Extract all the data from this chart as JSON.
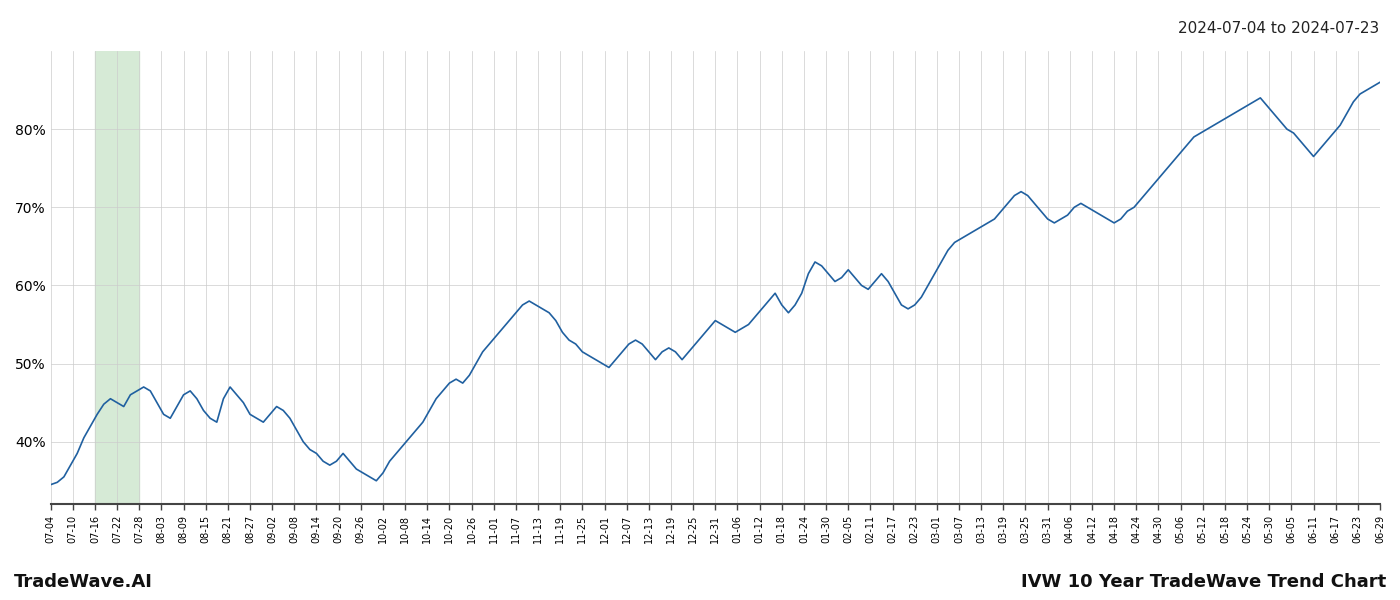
{
  "title_top_right": "2024-07-04 to 2024-07-23",
  "bottom_left": "TradeWave.AI",
  "bottom_right": "IVW 10 Year TradeWave Trend Chart",
  "line_color": "#2060a0",
  "shade_color": "#d6ead6",
  "ylim": [
    32,
    90
  ],
  "yticks": [
    40,
    50,
    60,
    70,
    80
  ],
  "ytick_labels": [
    "40%",
    "50%",
    "60%",
    "70%",
    "80%"
  ],
  "shade_start_label": "07-16",
  "shade_end_label": "07-28",
  "background_color": "#ffffff",
  "grid_color": "#cccccc",
  "xtick_labels": [
    "07-04",
    "07-10",
    "07-16",
    "07-22",
    "07-28",
    "08-03",
    "08-09",
    "08-15",
    "08-21",
    "08-27",
    "09-02",
    "09-08",
    "09-14",
    "09-20",
    "09-26",
    "10-02",
    "10-08",
    "10-14",
    "10-20",
    "10-26",
    "11-01",
    "11-07",
    "11-13",
    "11-19",
    "11-25",
    "12-01",
    "12-07",
    "12-13",
    "12-19",
    "12-25",
    "12-31",
    "01-06",
    "01-12",
    "01-18",
    "01-24",
    "01-30",
    "02-05",
    "02-11",
    "02-17",
    "02-23",
    "03-01",
    "03-07",
    "03-13",
    "03-19",
    "03-25",
    "03-31",
    "04-06",
    "04-12",
    "04-18",
    "04-24",
    "04-30",
    "05-06",
    "05-12",
    "05-18",
    "05-24",
    "05-30",
    "06-05",
    "06-11",
    "06-17",
    "06-23",
    "06-29"
  ],
  "y_values": [
    34.5,
    34.8,
    35.5,
    37.0,
    38.5,
    40.5,
    42.0,
    43.5,
    44.8,
    45.5,
    45.0,
    44.5,
    46.0,
    46.5,
    47.0,
    46.5,
    45.0,
    43.5,
    43.0,
    44.5,
    46.0,
    46.5,
    45.5,
    44.0,
    43.0,
    42.5,
    45.5,
    47.0,
    46.0,
    45.0,
    43.5,
    43.0,
    42.5,
    43.5,
    44.5,
    44.0,
    43.0,
    41.5,
    40.0,
    39.0,
    38.5,
    37.5,
    37.0,
    37.5,
    38.5,
    37.5,
    36.5,
    36.0,
    35.5,
    35.0,
    36.0,
    37.5,
    38.5,
    39.5,
    40.5,
    41.5,
    42.5,
    44.0,
    45.5,
    46.5,
    47.5,
    48.0,
    47.5,
    48.5,
    50.0,
    51.5,
    52.5,
    53.5,
    54.5,
    55.5,
    56.5,
    57.5,
    58.0,
    57.5,
    57.0,
    56.5,
    55.5,
    54.0,
    53.0,
    52.5,
    51.5,
    51.0,
    50.5,
    50.0,
    49.5,
    50.5,
    51.5,
    52.5,
    53.0,
    52.5,
    51.5,
    50.5,
    51.5,
    52.0,
    51.5,
    50.5,
    51.5,
    52.5,
    53.5,
    54.5,
    55.5,
    55.0,
    54.5,
    54.0,
    54.5,
    55.0,
    56.0,
    57.0,
    58.0,
    59.0,
    57.5,
    56.5,
    57.5,
    59.0,
    61.5,
    63.0,
    62.5,
    61.5,
    60.5,
    61.0,
    62.0,
    61.0,
    60.0,
    59.5,
    60.5,
    61.5,
    60.5,
    59.0,
    57.5,
    57.0,
    57.5,
    58.5,
    60.0,
    61.5,
    63.0,
    64.5,
    65.5,
    66.0,
    66.5,
    67.0,
    67.5,
    68.0,
    68.5,
    69.5,
    70.5,
    71.5,
    72.0,
    71.5,
    70.5,
    69.5,
    68.5,
    68.0,
    68.5,
    69.0,
    70.0,
    70.5,
    70.0,
    69.5,
    69.0,
    68.5,
    68.0,
    68.5,
    69.5,
    70.0,
    71.0,
    72.0,
    73.0,
    74.0,
    75.0,
    76.0,
    77.0,
    78.0,
    79.0,
    79.5,
    80.0,
    80.5,
    81.0,
    81.5,
    82.0,
    82.5,
    83.0,
    83.5,
    84.0,
    83.0,
    82.0,
    81.0,
    80.0,
    79.5,
    78.5,
    77.5,
    76.5,
    77.5,
    78.5,
    79.5,
    80.5,
    82.0,
    83.5,
    84.5,
    85.0,
    85.5,
    86.0
  ]
}
